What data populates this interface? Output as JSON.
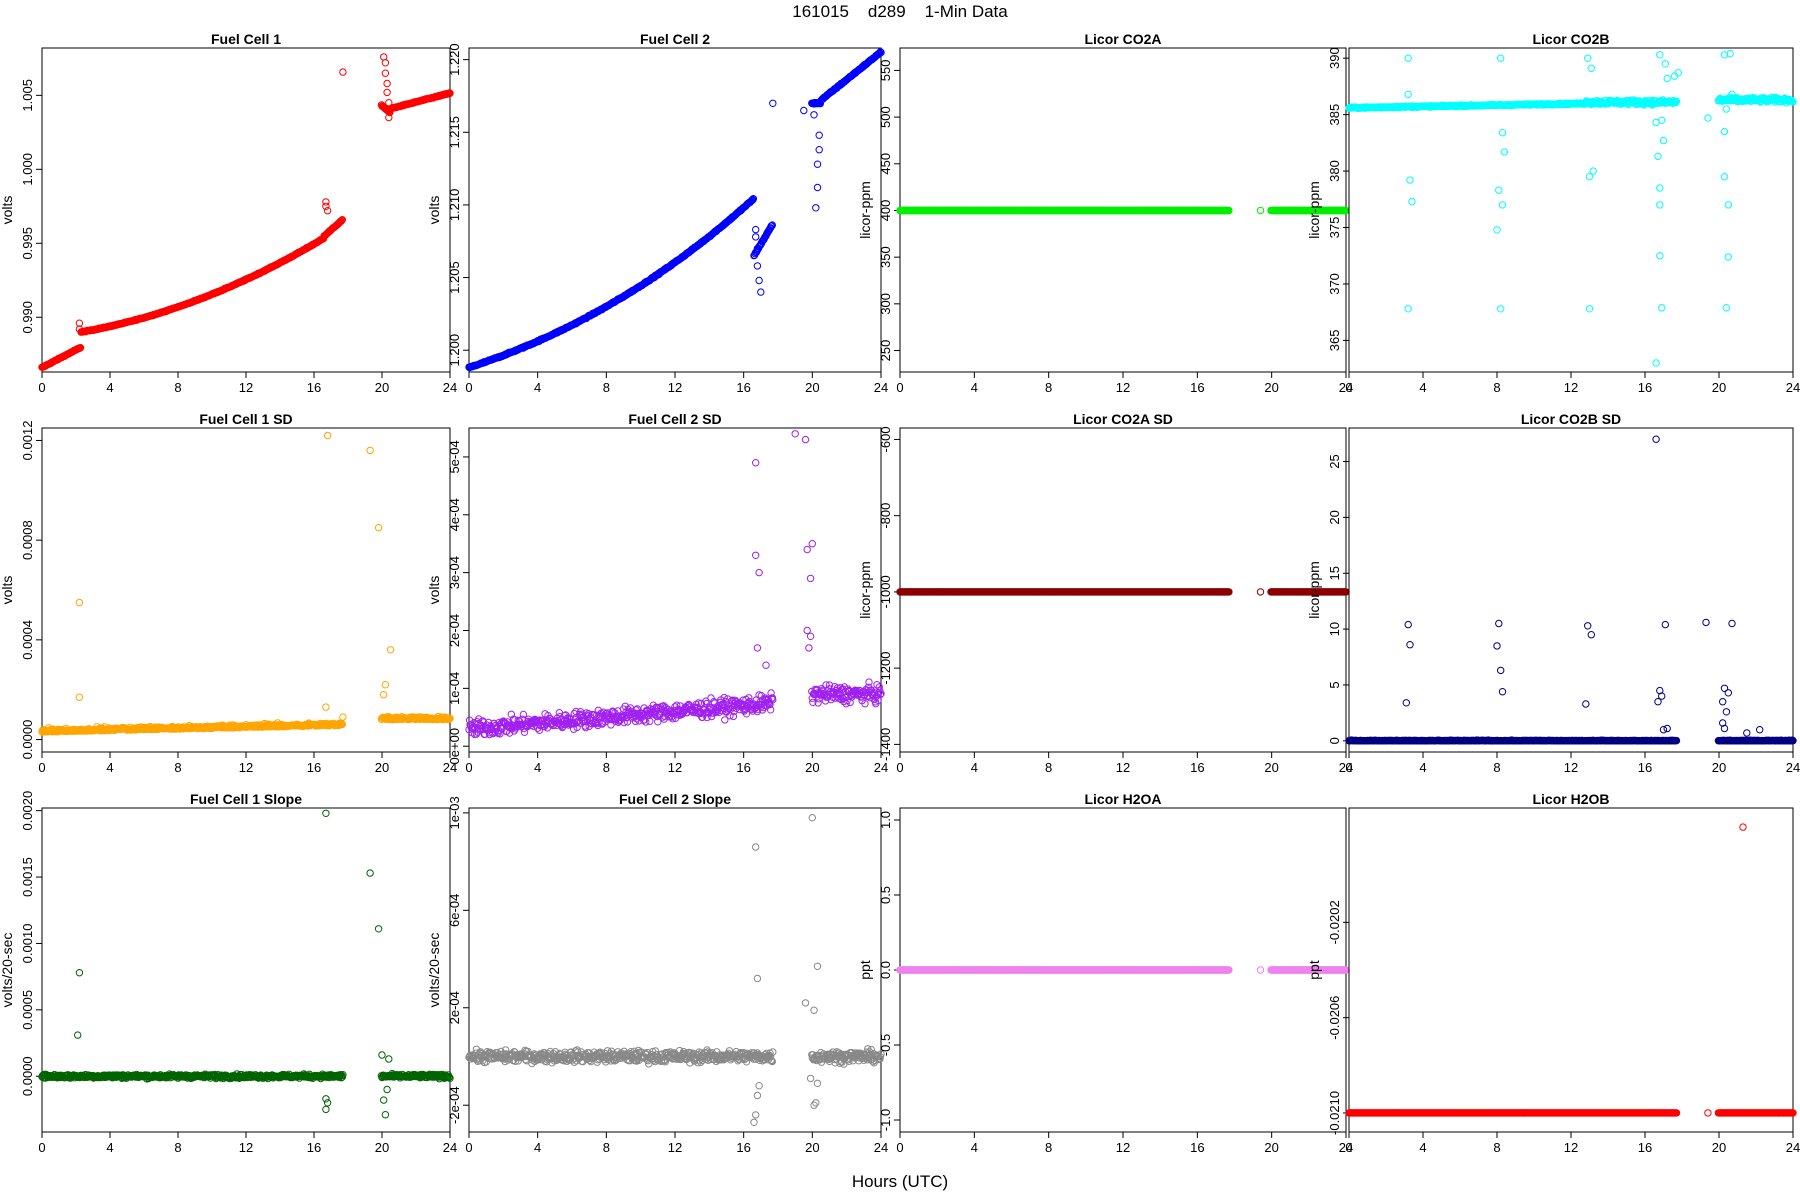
{
  "figure": {
    "title": "161015    d289    1-Min Data",
    "xlabel": "Hours (UTC)"
  },
  "chart_data": [
    {
      "id": "fc1",
      "type": "scatter",
      "title": "Fuel Cell 1",
      "ylabel": "volts",
      "color": "#ff0000",
      "xlim": [
        0,
        24
      ],
      "xticks": [
        0,
        4,
        8,
        12,
        16,
        20,
        24
      ],
      "ylim": [
        0.9863,
        1.0082
      ],
      "yticks": [
        0.99,
        0.995,
        1.0,
        1.005
      ],
      "ytick_labels": [
        "0.990",
        "0.995",
        "1.000",
        "1.005"
      ],
      "series_kind": "fc1",
      "outliers": [
        [
          2.2,
          0.9896
        ],
        [
          2.2,
          0.9892
        ],
        [
          16.7,
          0.9978
        ],
        [
          16.7,
          0.9975
        ],
        [
          16.8,
          0.9972
        ],
        [
          20.1,
          1.0076
        ],
        [
          20.2,
          1.0072
        ],
        [
          20.2,
          1.0065
        ],
        [
          20.3,
          1.0058
        ],
        [
          20.3,
          1.0052
        ],
        [
          20.4,
          1.0045
        ],
        [
          20.4,
          1.004
        ],
        [
          20.4,
          1.0035
        ]
      ]
    },
    {
      "id": "fc2",
      "type": "scatter",
      "title": "Fuel Cell 2",
      "ylabel": "volts",
      "color": "#0000ff",
      "xlim": [
        0,
        24
      ],
      "xticks": [
        0,
        4,
        8,
        12,
        16,
        20,
        24
      ],
      "ylim": [
        1.1985,
        1.2208
      ],
      "yticks": [
        1.2,
        1.205,
        1.21,
        1.215,
        1.22
      ],
      "ytick_labels": [
        "1.200",
        "1.205",
        "1.210",
        "1.215",
        "1.220"
      ],
      "series_kind": "fc2",
      "outliers": [
        [
          19.5,
          1.2165
        ],
        [
          20.1,
          1.2162
        ],
        [
          16.7,
          1.2083
        ],
        [
          16.7,
          1.2078
        ],
        [
          16.8,
          1.207
        ],
        [
          16.8,
          1.2058
        ],
        [
          16.9,
          1.2048
        ],
        [
          17.0,
          1.204
        ],
        [
          20.2,
          1.2098
        ],
        [
          20.3,
          1.2112
        ],
        [
          20.3,
          1.2128
        ],
        [
          20.4,
          1.2138
        ],
        [
          20.4,
          1.2148
        ]
      ]
    },
    {
      "id": "co2a",
      "type": "scatter",
      "title": "Licor CO2A",
      "ylabel": "licor-ppm",
      "color": "#00ee00",
      "xlim": [
        0,
        24
      ],
      "xticks": [
        0,
        4,
        8,
        12,
        16,
        20,
        24
      ],
      "ylim": [
        227,
        574
      ],
      "yticks": [
        250,
        300,
        350,
        400,
        450,
        500,
        550
      ],
      "ytick_labels": [
        "250",
        "300",
        "350",
        "400",
        "450",
        "500",
        "550"
      ],
      "series_kind": "const",
      "const_value": 400,
      "outliers": [
        [
          19.4,
          400
        ]
      ]
    },
    {
      "id": "co2b",
      "type": "scatter",
      "title": "Licor CO2B",
      "ylabel": "licor-ppm",
      "color": "#00ffff",
      "xlim": [
        0,
        24
      ],
      "xticks": [
        0,
        4,
        8,
        12,
        16,
        20,
        24
      ],
      "ylim": [
        362.2,
        390.9
      ],
      "yticks": [
        365,
        370,
        375,
        380,
        385,
        390
      ],
      "ytick_labels": [
        "365",
        "370",
        "375",
        "380",
        "385",
        "390"
      ],
      "series_kind": "co2b",
      "outliers": [
        [
          3.2,
          390
        ],
        [
          3.2,
          367.8
        ],
        [
          3.3,
          379.2
        ],
        [
          3.4,
          377.3
        ],
        [
          3.2,
          386.8
        ],
        [
          8.2,
          390
        ],
        [
          8.2,
          367.8
        ],
        [
          8.0,
          374.8
        ],
        [
          8.1,
          378.3
        ],
        [
          8.3,
          377
        ],
        [
          8.4,
          381.7
        ],
        [
          8.3,
          383.4
        ],
        [
          12.9,
          390
        ],
        [
          13.0,
          367.8
        ],
        [
          13.0,
          379.5
        ],
        [
          13.2,
          380
        ],
        [
          13.1,
          389.1
        ],
        [
          16.6,
          384.3
        ],
        [
          16.7,
          381.3
        ],
        [
          16.8,
          378.5
        ],
        [
          16.8,
          377
        ],
        [
          16.6,
          363
        ],
        [
          16.8,
          372.5
        ],
        [
          16.8,
          390.3
        ],
        [
          16.9,
          367.9
        ],
        [
          16.9,
          384.5
        ],
        [
          17.0,
          382.7
        ],
        [
          17.1,
          389.5
        ],
        [
          17.2,
          388.2
        ],
        [
          20.3,
          390.3
        ],
        [
          20.4,
          367.9
        ],
        [
          20.5,
          372.4
        ],
        [
          20.5,
          377
        ],
        [
          20.3,
          379.5
        ],
        [
          20.3,
          383.5
        ],
        [
          20.4,
          385.5
        ],
        [
          20.6,
          390.4
        ],
        [
          20.7,
          386.8
        ],
        [
          19.4,
          384.7
        ],
        [
          17.6,
          388.4
        ],
        [
          17.8,
          388.7
        ]
      ]
    },
    {
      "id": "fc1sd",
      "type": "scatter",
      "title": "Fuel Cell 1 SD",
      "ylabel": "volts",
      "color": "#ffa500",
      "xlim": [
        0,
        24
      ],
      "xticks": [
        0,
        4,
        8,
        12,
        16,
        20,
        24
      ],
      "ylim": [
        -5e-05,
        0.00125
      ],
      "yticks": [
        0,
        0.0004,
        0.0008,
        0.0012
      ],
      "ytick_labels": [
        "0.0000",
        "0.0004",
        "0.0008",
        "0.0012"
      ],
      "series_kind": "fc1sd",
      "outliers": [
        [
          2.2,
          0.00055
        ],
        [
          2.2,
          0.00017
        ],
        [
          16.8,
          0.00122
        ],
        [
          16.7,
          0.00013
        ],
        [
          19.3,
          0.00116
        ],
        [
          19.8,
          0.00085
        ],
        [
          20.5,
          0.00036
        ],
        [
          20.2,
          0.00022
        ],
        [
          20.1,
          0.00018
        ]
      ]
    },
    {
      "id": "fc2sd",
      "type": "scatter",
      "title": "Fuel Cell 2 SD",
      "ylabel": "volts",
      "color": "#a020f0",
      "xlim": [
        0,
        24
      ],
      "xticks": [
        0,
        4,
        8,
        12,
        16,
        20,
        24
      ],
      "ylim": [
        -1e-05,
        0.00055
      ],
      "yticks": [
        0,
        0.0001,
        0.0002,
        0.0003,
        0.0004,
        0.0005
      ],
      "ytick_labels": [
        "0e+00",
        "1e-04",
        "2e-04",
        "3e-04",
        "4e-04",
        "5e-04"
      ],
      "series_kind": "fc2sd",
      "outliers": [
        [
          16.7,
          0.00049
        ],
        [
          16.7,
          0.00033
        ],
        [
          16.9,
          0.0003
        ],
        [
          16.8,
          0.00017
        ],
        [
          17.3,
          0.00014
        ],
        [
          19.0,
          0.00054
        ],
        [
          19.6,
          0.00053
        ],
        [
          19.7,
          0.00034
        ],
        [
          20.0,
          0.00035
        ],
        [
          19.9,
          0.00029
        ],
        [
          19.7,
          0.0002
        ],
        [
          19.9,
          0.00019
        ],
        [
          19.8,
          0.00017
        ]
      ]
    },
    {
      "id": "co2asd",
      "type": "scatter",
      "title": "Licor CO2A SD",
      "ylabel": "licor-ppm",
      "color": "#8b0000",
      "xlim": [
        0,
        24
      ],
      "xticks": [
        0,
        4,
        8,
        12,
        16,
        20,
        24
      ],
      "ylim": [
        -1420,
        -570
      ],
      "yticks": [
        -1400,
        -1200,
        -1000,
        -800,
        -600
      ],
      "ytick_labels": [
        "-1400",
        "-1200",
        "-1000",
        "-800",
        "-600"
      ],
      "series_kind": "const",
      "const_value": -1000,
      "outliers": [
        [
          19.4,
          -1000
        ]
      ]
    },
    {
      "id": "co2bsd",
      "type": "scatter",
      "title": "Licor CO2B SD",
      "ylabel": "licor-ppm",
      "color": "#000080",
      "xlim": [
        0,
        24
      ],
      "xticks": [
        0,
        4,
        8,
        12,
        16,
        20,
        24
      ],
      "ylim": [
        -1.0,
        28.0
      ],
      "yticks": [
        0,
        5,
        10,
        15,
        20,
        25
      ],
      "ytick_labels": [
        "0",
        "5",
        "10",
        "15",
        "20",
        "25"
      ],
      "series_kind": "co2bsd",
      "outliers": [
        [
          3.2,
          10.4
        ],
        [
          3.3,
          8.6
        ],
        [
          3.1,
          3.4
        ],
        [
          8.0,
          8.5
        ],
        [
          8.1,
          10.5
        ],
        [
          8.2,
          6.3
        ],
        [
          8.3,
          4.4
        ],
        [
          12.9,
          10.3
        ],
        [
          13.1,
          9.5
        ],
        [
          12.8,
          3.3
        ],
        [
          16.6,
          27.0
        ],
        [
          16.8,
          4.5
        ],
        [
          16.7,
          3.5
        ],
        [
          16.9,
          4.0
        ],
        [
          17.1,
          10.4
        ],
        [
          17.2,
          1.1
        ],
        [
          19.3,
          10.6
        ],
        [
          20.2,
          3.5
        ],
        [
          20.3,
          4.7
        ],
        [
          20.5,
          4.3
        ],
        [
          20.7,
          10.5
        ],
        [
          20.4,
          2.6
        ],
        [
          20.2,
          1.6
        ],
        [
          20.3,
          1.1
        ],
        [
          22.2,
          1.0
        ],
        [
          21.5,
          0.7
        ],
        [
          17.0,
          1.0
        ]
      ]
    },
    {
      "id": "fc1slope",
      "type": "scatter",
      "title": "Fuel Cell 1 Slope",
      "ylabel": "volts/20-sec",
      "color": "#006400",
      "xlim": [
        0,
        24
      ],
      "xticks": [
        0,
        4,
        8,
        12,
        16,
        20,
        24
      ],
      "ylim": [
        -0.00042,
        0.00202
      ],
      "yticks": [
        0,
        0.0005,
        0.001,
        0.0015,
        0.002
      ],
      "ytick_labels": [
        "0.0000",
        "0.0005",
        "0.0010",
        "0.0015",
        "0.0020"
      ],
      "series_kind": "fc1slope",
      "outliers": [
        [
          2.2,
          0.00078
        ],
        [
          2.1,
          0.00031
        ],
        [
          16.7,
          0.00198
        ],
        [
          16.7,
          -0.00025
        ],
        [
          16.8,
          -0.0002
        ],
        [
          16.7,
          -0.00017
        ],
        [
          19.3,
          0.00153
        ],
        [
          19.8,
          0.00111
        ],
        [
          20.2,
          -0.00029
        ],
        [
          20.1,
          -0.00018
        ],
        [
          20.3,
          -0.0001
        ],
        [
          20.0,
          0.00016
        ],
        [
          20.4,
          0.00013
        ]
      ]
    },
    {
      "id": "fc2slope",
      "type": "scatter",
      "title": "Fuel Cell 2 Slope",
      "ylabel": "volts/20-sec",
      "color": "#888888",
      "xlim": [
        0,
        24
      ],
      "xticks": [
        0,
        4,
        8,
        12,
        16,
        20,
        24
      ],
      "ylim": [
        -0.00031,
        0.00102
      ],
      "yticks": [
        -0.0002,
        0.0002,
        0.0006,
        0.001
      ],
      "ytick_labels": [
        "-2e-04",
        "2e-04",
        "6e-04",
        "1e-03"
      ],
      "series_kind": "fc2slope",
      "outliers": [
        [
          16.7,
          0.00086
        ],
        [
          16.8,
          0.00032
        ],
        [
          16.6,
          -0.00027
        ],
        [
          16.7,
          -0.00024
        ],
        [
          16.8,
          -0.00016
        ],
        [
          16.9,
          -0.00012
        ],
        [
          20.0,
          0.00098
        ],
        [
          20.3,
          0.00037
        ],
        [
          19.6,
          0.00022
        ],
        [
          20.1,
          0.00019
        ],
        [
          20.2,
          -0.00019
        ],
        [
          20.1,
          -0.0002
        ],
        [
          19.9,
          -9e-05
        ],
        [
          20.3,
          -0.00011
        ]
      ]
    },
    {
      "id": "h2oa",
      "type": "scatter",
      "title": "Licor H2OA",
      "ylabel": "ppt",
      "color": "#ee82ee",
      "xlim": [
        0,
        24
      ],
      "xticks": [
        0,
        4,
        8,
        12,
        16,
        20,
        24
      ],
      "ylim": [
        -1.08,
        1.08
      ],
      "yticks": [
        -1.0,
        -0.5,
        0.0,
        0.5,
        1.0
      ],
      "ytick_labels": [
        "-1.0",
        "-0.5",
        "0.0",
        "0.5",
        "1.0"
      ],
      "series_kind": "const",
      "const_value": 0,
      "outliers": [
        [
          19.4,
          0
        ]
      ]
    },
    {
      "id": "h2ob",
      "type": "scatter",
      "title": "Licor H2OB",
      "ylabel": "ppt",
      "color": "#ff0000",
      "xlim": [
        0,
        24
      ],
      "xticks": [
        0,
        4,
        8,
        12,
        16,
        20,
        24
      ],
      "ylim": [
        -0.02108,
        -0.01972
      ],
      "yticks": [
        -0.021,
        -0.0206,
        -0.0202
      ],
      "ytick_labels": [
        "-0.0210",
        "-0.0206",
        "-0.0202"
      ],
      "series_kind": "const",
      "const_value": -0.021,
      "outliers": [
        [
          19.4,
          -0.021
        ],
        [
          21.3,
          -0.0198
        ]
      ]
    }
  ]
}
